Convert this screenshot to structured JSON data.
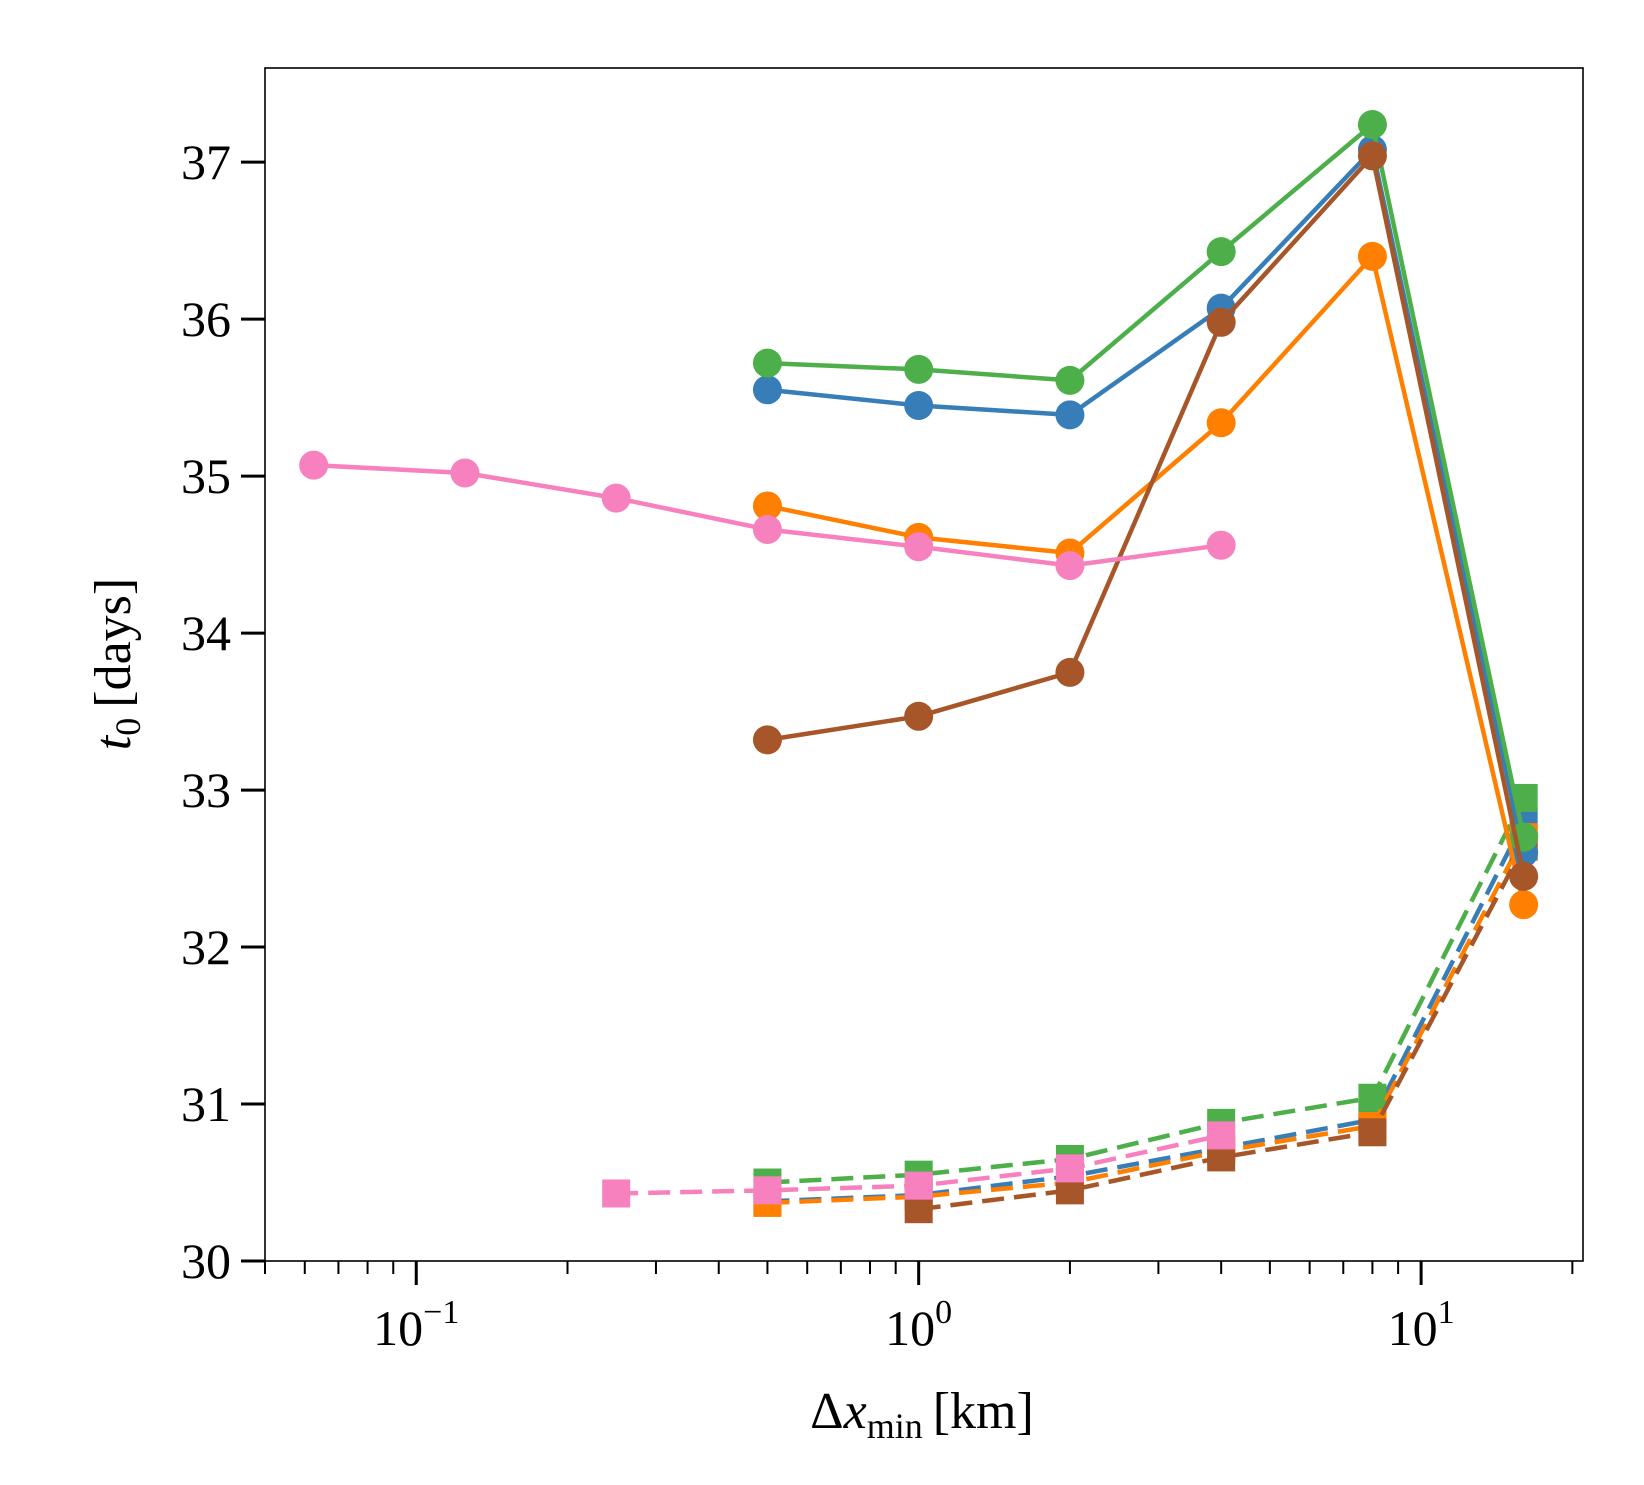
{
  "chart_data": {
    "type": "line",
    "title": "",
    "xlabel": {
      "main": "Δ",
      "var": "x",
      "sub": "min",
      "unit": "[km]"
    },
    "ylabel": {
      "var": "t",
      "sub": "0",
      "unit": "[days]"
    },
    "xscale": "log",
    "xlim": [
      0.05,
      21
    ],
    "ylim": [
      30,
      37.6
    ],
    "grid": false,
    "legend": "none",
    "xticks": [
      {
        "value": 0.1,
        "base": "10",
        "exp": "−1"
      },
      {
        "value": 1,
        "base": "10",
        "exp": "0"
      },
      {
        "value": 10,
        "base": "10",
        "exp": "1"
      }
    ],
    "yticks": [
      {
        "value": 30,
        "label": "30"
      },
      {
        "value": 31,
        "label": "31"
      },
      {
        "value": 32,
        "label": "32"
      },
      {
        "value": 33,
        "label": "33"
      },
      {
        "value": 34,
        "label": "34"
      },
      {
        "value": 35,
        "label": "35"
      },
      {
        "value": 36,
        "label": "36"
      },
      {
        "value": 37,
        "label": "37"
      }
    ],
    "series": [
      {
        "name": "blue-solid",
        "color": "#377eb8",
        "style": "solid",
        "marker": "circle",
        "x": [
          0.5,
          1,
          2,
          4,
          8,
          16
        ],
        "y": [
          35.55,
          35.45,
          35.39,
          36.07,
          37.08,
          32.6
        ]
      },
      {
        "name": "green-solid",
        "color": "#4daf4a",
        "style": "solid",
        "marker": "circle",
        "x": [
          0.5,
          1,
          2,
          4,
          8,
          16
        ],
        "y": [
          35.72,
          35.68,
          35.61,
          36.43,
          37.24,
          32.7
        ]
      },
      {
        "name": "orange-solid",
        "color": "#ff7f00",
        "style": "solid",
        "marker": "circle",
        "x": [
          0.5,
          1,
          2,
          4,
          8,
          16
        ],
        "y": [
          34.81,
          34.61,
          34.51,
          35.34,
          36.4,
          32.27
        ]
      },
      {
        "name": "brown-solid",
        "color": "#a65628",
        "style": "solid",
        "marker": "circle",
        "x": [
          0.5,
          1,
          2,
          4,
          8,
          16
        ],
        "y": [
          33.32,
          33.47,
          33.75,
          35.98,
          37.04,
          32.45
        ]
      },
      {
        "name": "pink-solid",
        "color": "#f781bf",
        "style": "solid",
        "marker": "circle",
        "x": [
          0.0625,
          0.125,
          0.25,
          0.5,
          1,
          2,
          4
        ],
        "y": [
          35.07,
          35.02,
          34.86,
          34.66,
          34.55,
          34.43,
          34.56
        ]
      },
      {
        "name": "blue-dashed",
        "color": "#377eb8",
        "style": "dashed",
        "marker": "square",
        "x": [
          0.5,
          1,
          2,
          4,
          8,
          16
        ],
        "y": [
          30.38,
          30.42,
          30.54,
          30.72,
          30.9,
          32.8
        ]
      },
      {
        "name": "green-dashed",
        "color": "#4daf4a",
        "style": "dashed",
        "marker": "square",
        "x": [
          0.5,
          1,
          2,
          4,
          8,
          16
        ],
        "y": [
          30.5,
          30.55,
          30.65,
          30.88,
          31.04,
          32.95
        ]
      },
      {
        "name": "orange-dashed",
        "color": "#ff7f00",
        "style": "dashed",
        "marker": "square",
        "x": [
          0.5,
          1,
          2,
          4,
          8,
          16
        ],
        "y": [
          30.37,
          30.41,
          30.5,
          30.7,
          30.86,
          32.7
        ]
      },
      {
        "name": "brown-dashed",
        "color": "#a65628",
        "style": "dashed",
        "marker": "square",
        "x": [
          1,
          2,
          4,
          8,
          16
        ],
        "y": [
          30.33,
          30.45,
          30.66,
          30.82,
          32.64
        ]
      },
      {
        "name": "pink-dashed",
        "color": "#f781bf",
        "style": "dashed",
        "marker": "square",
        "x": [
          0.25,
          0.5,
          1,
          2,
          4
        ],
        "y": [
          30.43,
          30.45,
          30.48,
          30.59,
          30.8
        ]
      }
    ]
  }
}
